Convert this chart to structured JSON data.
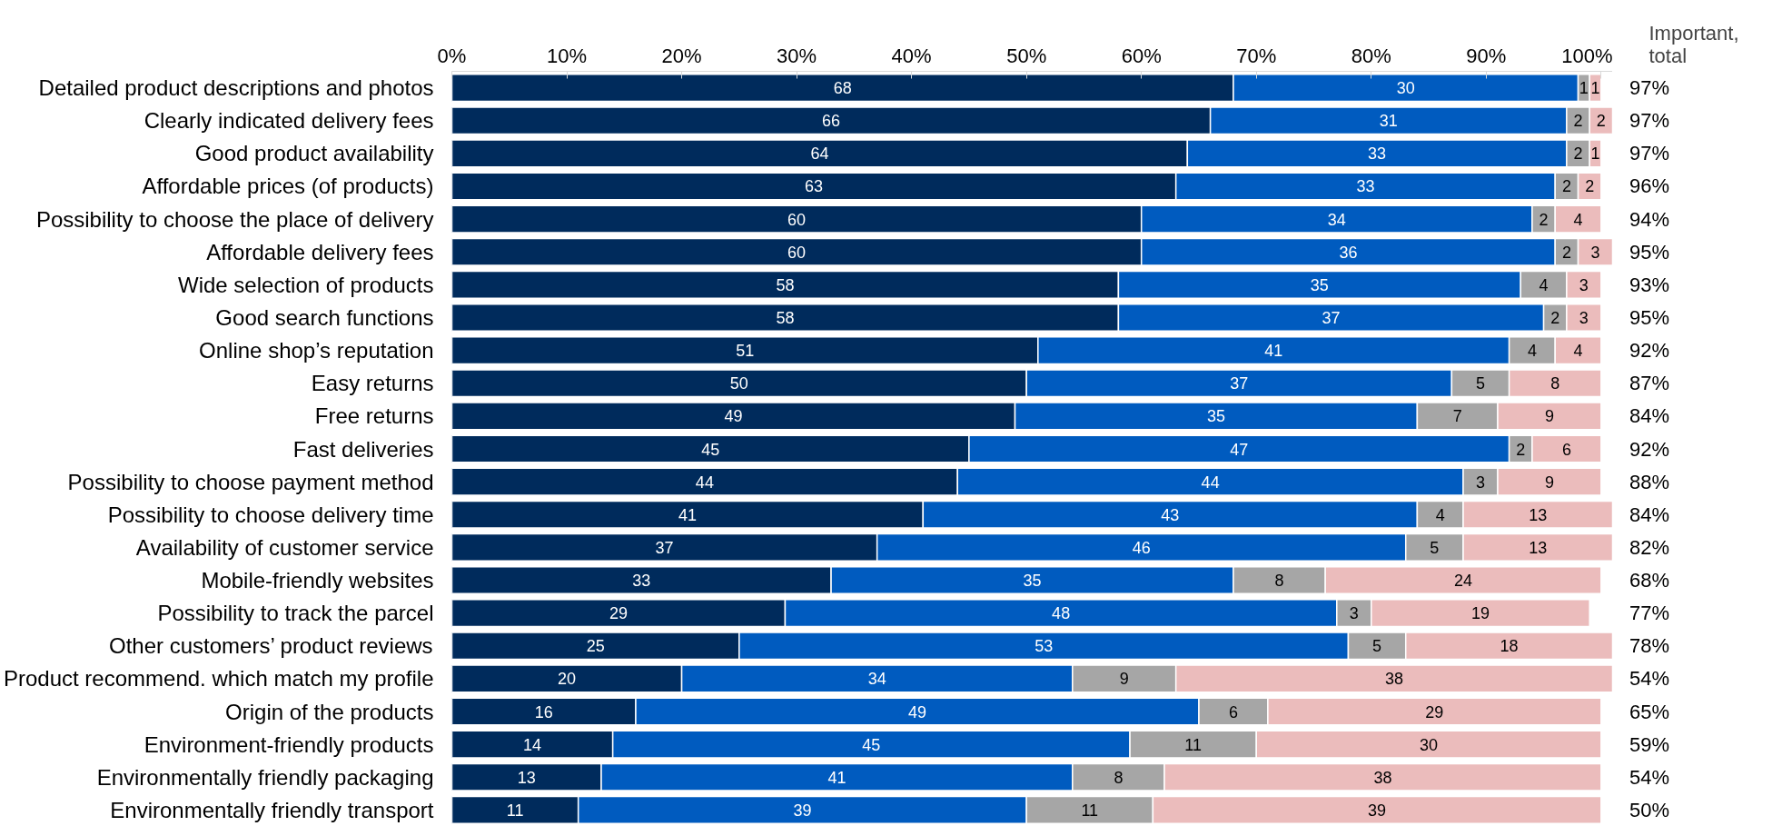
{
  "chart_data": {
    "type": "bar",
    "orientation": "horizontal",
    "stacked": true,
    "data_labels": true,
    "grid": false,
    "categories": [
      "Detailed product descriptions and photos",
      "Clearly indicated delivery fees",
      "Good product availability",
      "Affordable prices (of products)",
      "Possibility to choose the place of delivery",
      "Affordable delivery fees",
      "Wide selection of products",
      "Good search functions",
      "Online shop’s reputation",
      "Easy returns",
      "Free returns",
      "Fast deliveries",
      "Possibility to choose payment method",
      "Possibility to choose delivery time",
      "Availability of customer service",
      "Mobile-friendly websites",
      "Possibility to track the parcel",
      "Other customers’ product reviews",
      "Product recommend. which match my profile",
      "Origin of the products",
      "Environment-friendly products",
      "Environmentally friendly packaging",
      "Environmentally friendly transport"
    ],
    "series": [
      {
        "color": "#002b5c",
        "values": [
          68,
          66,
          64,
          63,
          60,
          60,
          58,
          58,
          51,
          50,
          49,
          45,
          44,
          41,
          37,
          33,
          29,
          25,
          20,
          16,
          14,
          13,
          11
        ]
      },
      {
        "color": "#005bbf",
        "values": [
          30,
          31,
          33,
          33,
          34,
          36,
          35,
          37,
          41,
          37,
          35,
          47,
          44,
          43,
          46,
          35,
          48,
          53,
          34,
          49,
          45,
          41,
          39
        ]
      },
      {
        "color": "#a6a6a6",
        "values": [
          1,
          2,
          2,
          2,
          2,
          2,
          4,
          2,
          4,
          5,
          7,
          2,
          3,
          4,
          5,
          8,
          3,
          5,
          9,
          6,
          11,
          8,
          11
        ]
      },
      {
        "color": "#ebbcbc",
        "values": [
          1,
          2,
          1,
          2,
          4,
          3,
          3,
          3,
          4,
          8,
          9,
          6,
          9,
          13,
          13,
          24,
          19,
          18,
          38,
          29,
          30,
          38,
          39
        ]
      }
    ],
    "annotations": [
      "Important, total",
      "97%",
      "97%",
      "97%",
      "96%",
      "94%",
      "95%",
      "93%",
      "95%",
      "92%",
      "87%",
      "84%",
      "92%",
      "88%",
      "84%",
      "82%",
      "68%",
      "77%",
      "78%",
      "54%",
      "65%",
      "59%",
      "54%",
      "50%"
    ],
    "xlim": [
      0,
      101
    ],
    "xticks": [
      {
        "value": 0,
        "label": "0%"
      },
      {
        "value": 10,
        "label": "10%"
      },
      {
        "value": 20,
        "label": "20%"
      },
      {
        "value": 30,
        "label": "30%"
      },
      {
        "value": 40,
        "label": "40%"
      },
      {
        "value": 50,
        "label": "50%"
      },
      {
        "value": 60,
        "label": "60%"
      },
      {
        "value": 70,
        "label": "70%"
      },
      {
        "value": 80,
        "label": "80%"
      },
      {
        "value": 90,
        "label": "90%"
      },
      {
        "value": 100,
        "label": "100%"
      }
    ]
  }
}
